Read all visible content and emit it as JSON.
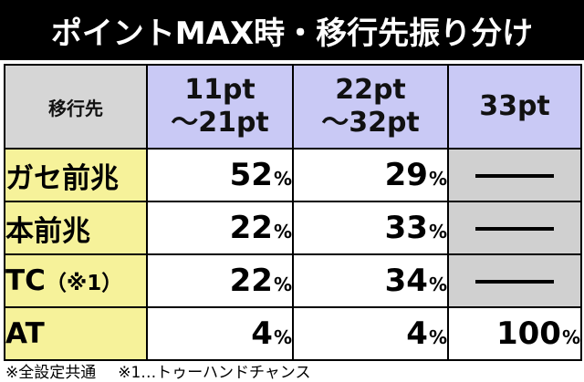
{
  "title": "ポイントMAX時・移行先振り分け",
  "table": {
    "corner_label": "移行先",
    "columns": [
      {
        "line1": "11pt",
        "line2": "～21pt"
      },
      {
        "line1": "22pt",
        "line2": "～32pt"
      },
      {
        "line1": "33pt",
        "line2": ""
      }
    ],
    "rows": [
      {
        "label": "ガセ前兆",
        "note": "",
        "v1": "52",
        "v2": "29",
        "v3": ""
      },
      {
        "label": "本前兆",
        "note": "",
        "v1": "22",
        "v2": "33",
        "v3": ""
      },
      {
        "label": "TC",
        "note": "（※1）",
        "v1": "22",
        "v2": "34",
        "v3": ""
      },
      {
        "label": "AT",
        "note": "",
        "v1": "4",
        "v2": "4",
        "v3": "100"
      }
    ],
    "percent_sign": "%"
  },
  "footnotes": {
    "all_settings": "※全設定共通",
    "note1": "※1…トゥーハンドチャンス"
  },
  "colors": {
    "title_bg": "#000000",
    "header_gray": "#d6d6d6",
    "header_purple": "#c9c9f5",
    "row_yellow": "#f6f29a",
    "na_gray": "#d0d0d0"
  }
}
